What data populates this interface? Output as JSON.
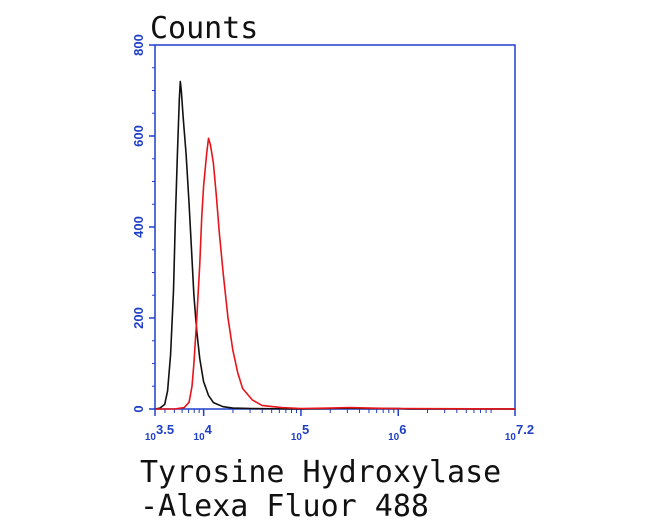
{
  "chart_data": {
    "type": "line",
    "title": "Counts",
    "xlabel_line1": "Tyrosine Hydroxylase",
    "xlabel_line2": "-Alexa Fluor 488",
    "x_scale": "log10",
    "xlim": [
      3.5,
      7.2
    ],
    "ylim": [
      0,
      800
    ],
    "y_ticks": [
      0,
      200,
      400,
      600,
      800
    ],
    "y_tick_labels": [
      "0",
      "200",
      "400",
      "600",
      "800"
    ],
    "x_ticks": [
      {
        "exp": 3.5,
        "label": "10",
        "sup": "3.5"
      },
      {
        "exp": 4,
        "label": "10",
        "sup": "4"
      },
      {
        "exp": 5,
        "label": "10",
        "sup": "5"
      },
      {
        "exp": 6,
        "label": "10",
        "sup": "6"
      },
      {
        "exp": 7.2,
        "label": "10",
        "sup": "7.2"
      }
    ],
    "grid": false,
    "axis_color": "#1f3fc8",
    "series": [
      {
        "color": "#111111",
        "points": [
          [
            3.5,
            0
          ],
          [
            3.55,
            2
          ],
          [
            3.6,
            10
          ],
          [
            3.63,
            40
          ],
          [
            3.66,
            120
          ],
          [
            3.69,
            260
          ],
          [
            3.71,
            420
          ],
          [
            3.73,
            560
          ],
          [
            3.75,
            680
          ],
          [
            3.76,
            720
          ],
          [
            3.77,
            700
          ],
          [
            3.79,
            640
          ],
          [
            3.82,
            560
          ],
          [
            3.85,
            450
          ],
          [
            3.88,
            330
          ],
          [
            3.9,
            250
          ],
          [
            3.93,
            170
          ],
          [
            3.96,
            110
          ],
          [
            4.0,
            60
          ],
          [
            4.05,
            30
          ],
          [
            4.1,
            14
          ],
          [
            4.2,
            5
          ],
          [
            4.3,
            2
          ],
          [
            4.5,
            1
          ],
          [
            5.0,
            0
          ],
          [
            5.5,
            2
          ],
          [
            5.7,
            1
          ],
          [
            6.0,
            1
          ],
          [
            6.1,
            0
          ],
          [
            7.2,
            0
          ]
        ]
      },
      {
        "color": "#e8141a",
        "points": [
          [
            3.5,
            0
          ],
          [
            3.7,
            0
          ],
          [
            3.8,
            3
          ],
          [
            3.85,
            15
          ],
          [
            3.88,
            50
          ],
          [
            3.9,
            100
          ],
          [
            3.93,
            200
          ],
          [
            3.96,
            320
          ],
          [
            3.98,
            420
          ],
          [
            4.0,
            490
          ],
          [
            4.03,
            560
          ],
          [
            4.05,
            595
          ],
          [
            4.07,
            580
          ],
          [
            4.1,
            540
          ],
          [
            4.13,
            470
          ],
          [
            4.16,
            390
          ],
          [
            4.2,
            300
          ],
          [
            4.25,
            200
          ],
          [
            4.3,
            130
          ],
          [
            4.35,
            80
          ],
          [
            4.4,
            45
          ],
          [
            4.5,
            20
          ],
          [
            4.6,
            8
          ],
          [
            4.8,
            3
          ],
          [
            5.0,
            1
          ],
          [
            5.3,
            2
          ],
          [
            5.5,
            3
          ],
          [
            5.7,
            2
          ],
          [
            6.0,
            1
          ],
          [
            7.2,
            0
          ]
        ]
      }
    ]
  }
}
